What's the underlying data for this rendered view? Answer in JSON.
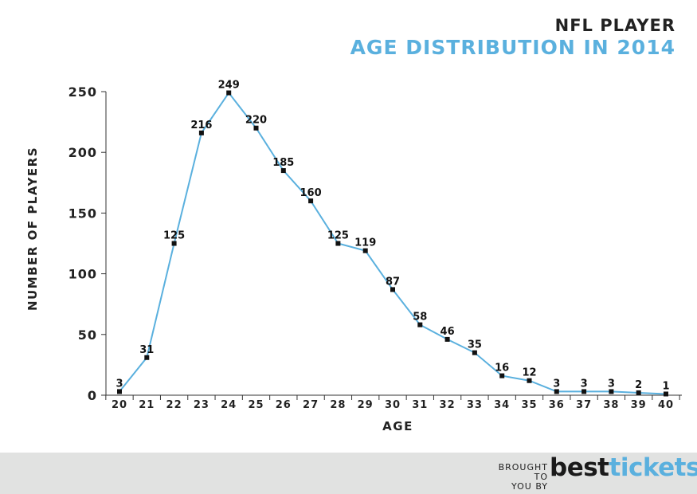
{
  "header": {
    "line1": "NFL PLAYER",
    "line2": "AGE DISTRIBUTION IN 2014"
  },
  "footer": {
    "brought_line1": "BROUGHT TO",
    "brought_line2": "YOU BY",
    "brand_part1": "best",
    "brand_part2": "tickets"
  },
  "colors": {
    "accent": "#5ab0de",
    "line": "#5ab0de",
    "marker": "#111111",
    "axis": "#333333",
    "footer_bg": "#e1e2e1"
  },
  "chart_data": {
    "type": "line",
    "title": "NFL PLAYER AGE DISTRIBUTION IN 2014",
    "xlabel": "AGE",
    "ylabel": "NUMBER OF PLAYERS",
    "categories": [
      "20",
      "21",
      "22",
      "23",
      "24",
      "25",
      "26",
      "27",
      "28",
      "29",
      "30",
      "31",
      "32",
      "33",
      "34",
      "35",
      "36",
      "37",
      "38",
      "39",
      "40"
    ],
    "values": [
      3,
      31,
      125,
      216,
      249,
      220,
      185,
      160,
      125,
      119,
      87,
      58,
      46,
      35,
      16,
      12,
      3,
      3,
      3,
      2,
      1
    ],
    "data_labels": [
      "3",
      "31",
      "125",
      "216",
      "249",
      "220",
      "185",
      "160",
      "125",
      "119",
      "87",
      "58",
      "46",
      "35",
      "16",
      "12",
      "3",
      "3",
      "3",
      "2",
      "1"
    ],
    "ylim": [
      0,
      250
    ],
    "yticks": [
      0,
      50,
      100,
      150,
      200,
      250
    ],
    "ytick_labels": [
      "0",
      "50",
      "100",
      "150",
      "200",
      "250"
    ],
    "grid": false,
    "legend": "none"
  }
}
